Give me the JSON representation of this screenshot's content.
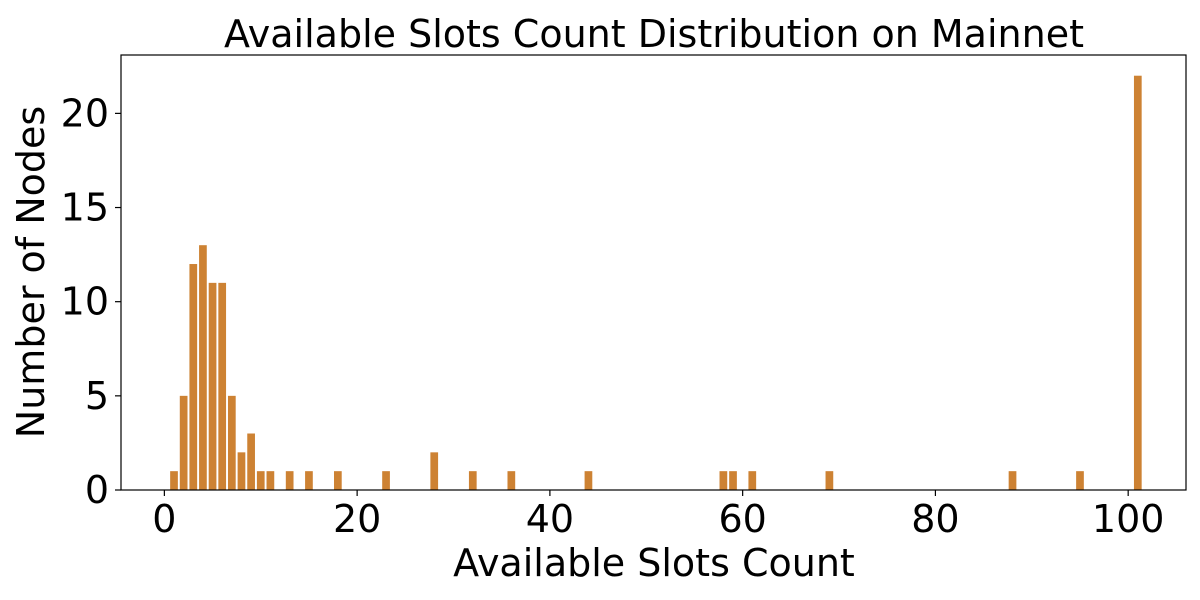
{
  "chart_data": {
    "type": "bar",
    "title": "Available Slots Count Distribution on Mainnet",
    "xlabel": "Available Slots Count",
    "ylabel": "Number of Nodes",
    "xlim": [
      -4.5,
      106
    ],
    "ylim": [
      0,
      23.1
    ],
    "xticks": [
      0,
      20,
      40,
      60,
      80,
      100
    ],
    "yticks": [
      0,
      5,
      10,
      15,
      20
    ],
    "bar_color": "#cd8233",
    "grid": false,
    "x": [
      1,
      2,
      3,
      4,
      5,
      6,
      7,
      8,
      9,
      10,
      11,
      13,
      15,
      18,
      23,
      28,
      32,
      36,
      44,
      58,
      59,
      61,
      69,
      88,
      95,
      101
    ],
    "values": [
      1,
      5,
      12,
      13,
      11,
      11,
      5,
      2,
      3,
      1,
      1,
      1,
      1,
      1,
      1,
      2,
      1,
      1,
      1,
      1,
      1,
      1,
      1,
      1,
      1,
      22
    ]
  }
}
